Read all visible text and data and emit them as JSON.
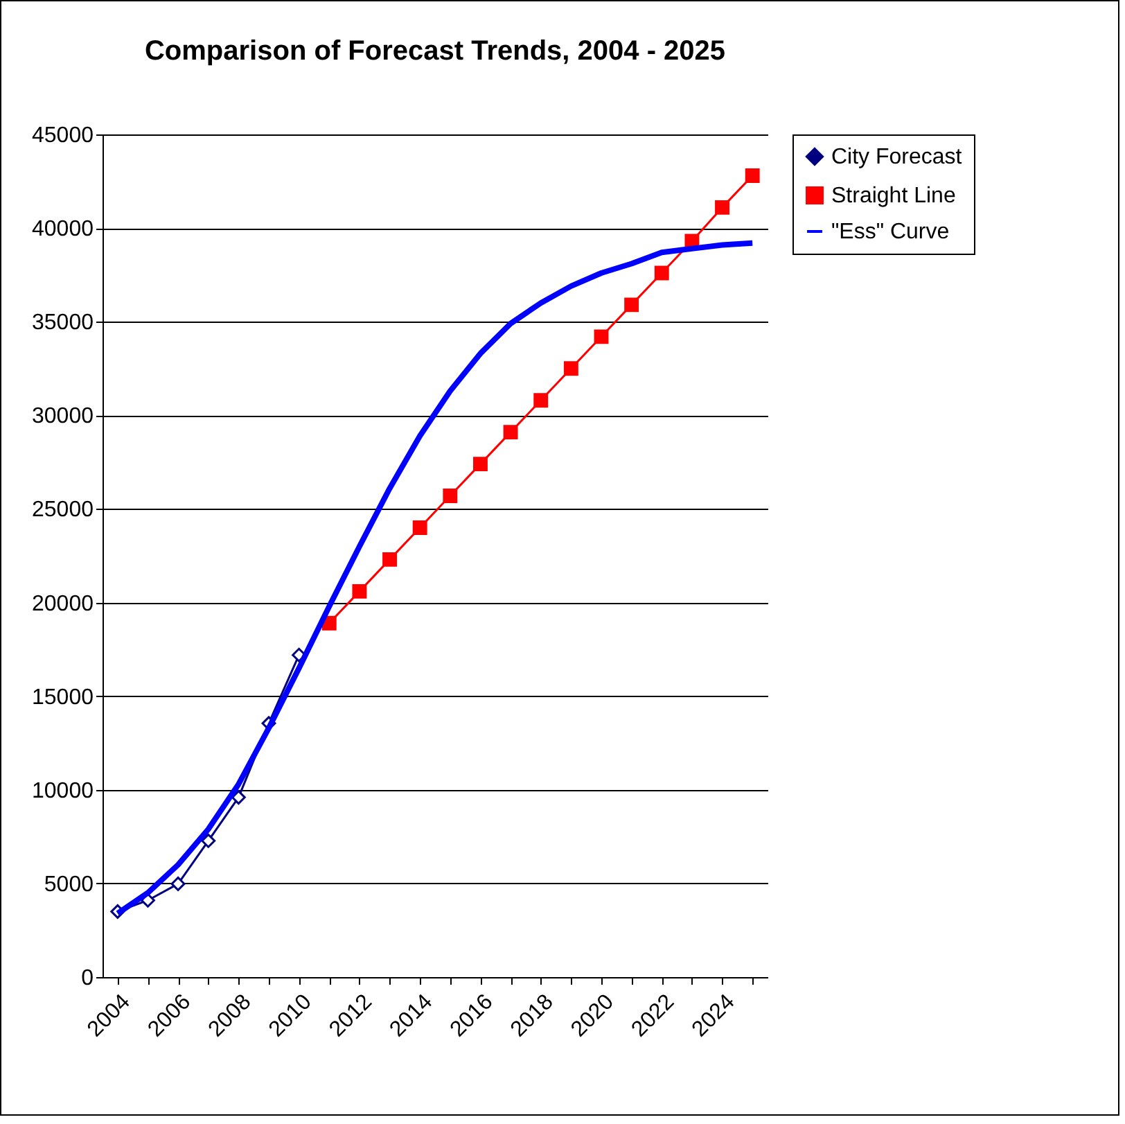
{
  "chart_data": {
    "type": "line",
    "title": "Comparison of Forecast Trends, 2004 - 2025",
    "categories": [
      "2004",
      null,
      "2006",
      null,
      "2008",
      null,
      "2010",
      null,
      "2012",
      null,
      "2014",
      null,
      "2016",
      null,
      "2018",
      null,
      "2020",
      null,
      "2022",
      null,
      "2024",
      null
    ],
    "series": [
      {
        "name": "City Forecast",
        "color": "#000080",
        "marker": "diamond",
        "values": [
          3500,
          4100,
          4980,
          7280,
          9600,
          13550,
          17200,
          null,
          null,
          null,
          null,
          null,
          null,
          null,
          null,
          null,
          null,
          null,
          null,
          null,
          null,
          null
        ]
      },
      {
        "name": "Straight Line",
        "color": "#ff0000",
        "marker": "square",
        "values": [
          null,
          null,
          null,
          null,
          null,
          null,
          null,
          18900,
          20600,
          22300,
          24000,
          25700,
          27400,
          29100,
          30800,
          32500,
          34200,
          35900,
          37600,
          39300,
          41100,
          42800
        ]
      },
      {
        "name": "\"Ess\" Curve",
        "color": "#0000ff",
        "marker": "none",
        "values": [
          3400,
          4500,
          6000,
          7900,
          10300,
          13300,
          16500,
          19800,
          23000,
          26100,
          28900,
          31300,
          33300,
          34900,
          36000,
          36900,
          37600,
          38100,
          38700,
          38900,
          39100,
          39200
        ]
      }
    ],
    "ylim": [
      0,
      45000
    ],
    "yticks": [
      0,
      5000,
      10000,
      15000,
      20000,
      25000,
      30000,
      35000,
      40000,
      45000
    ],
    "grid": "y",
    "legend": "right"
  }
}
